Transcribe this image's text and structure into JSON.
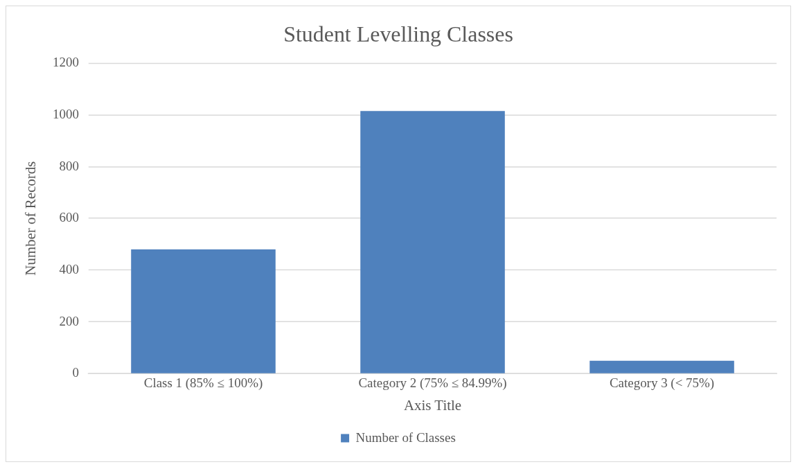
{
  "chart_data": {
    "type": "bar",
    "title": "Student Levelling Classes",
    "xlabel": "Axis Title",
    "ylabel": "Number of Records",
    "categories": [
      "Class 1 (85% ≤ 100%)",
      "Category 2 (75% ≤ 84.99%)",
      "Category 3 (< 75%)"
    ],
    "series": [
      {
        "name": "Number of Classes",
        "color": "#4f81bd",
        "values": [
          480,
          1015,
          50
        ]
      }
    ],
    "ylim": [
      0,
      1200
    ],
    "yticks": [
      0,
      200,
      400,
      600,
      800,
      1000,
      1200
    ],
    "grid": "y",
    "legend": "bottom"
  }
}
